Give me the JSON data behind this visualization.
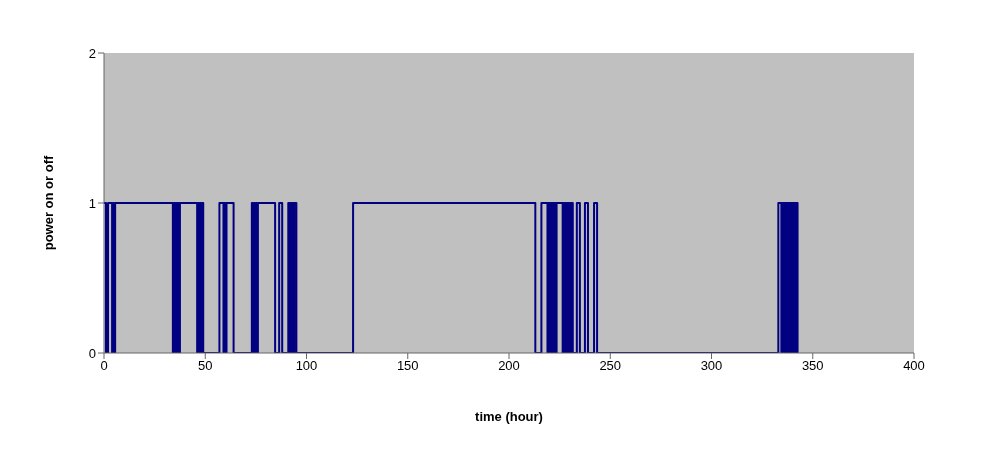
{
  "chart_data": {
    "type": "step",
    "xlabel": "time (hour)",
    "ylabel": "power on or off",
    "x": [
      0,
      1,
      2,
      4,
      4.5,
      5,
      5.5,
      34,
      34.5,
      35,
      35.5,
      36,
      36.5,
      37,
      37.5,
      46,
      46.5,
      47,
      47.5,
      48,
      48.5,
      49,
      57,
      59,
      59.5,
      60,
      60.5,
      64,
      73,
      73.5,
      74,
      74.5,
      75,
      75.5,
      76,
      84.5,
      86.5,
      88,
      91,
      91.5,
      92,
      92.5,
      93,
      93.5,
      94,
      95,
      123,
      213,
      216,
      219,
      219.5,
      220,
      220.5,
      221,
      221.5,
      222,
      222.5,
      223,
      223.5,
      226.5,
      227,
      227.5,
      228,
      228.5,
      229,
      229.5,
      230,
      230.5,
      231,
      231.5,
      233.5,
      235,
      237.5,
      239,
      242,
      243.5,
      333,
      334.5,
      335,
      335.5,
      336,
      336.5,
      337,
      337.5,
      338,
      338.5,
      339,
      339.5,
      340,
      340.5,
      341,
      341.5,
      342,
      342.5
    ],
    "series": [
      {
        "color": "#000080",
        "values": [
          1,
          0,
          1,
          0,
          1,
          0,
          1,
          0,
          1,
          0,
          1,
          0,
          1,
          0,
          1,
          0,
          1,
          0,
          1,
          0,
          1,
          0,
          1,
          0,
          1,
          0,
          1,
          0,
          1,
          0,
          1,
          0,
          1,
          0,
          1,
          0,
          1,
          0,
          1,
          0,
          1,
          0,
          1,
          0,
          1,
          0,
          1,
          0,
          1,
          0,
          1,
          0,
          1,
          0,
          1,
          0,
          1,
          0,
          1,
          0,
          1,
          0,
          1,
          0,
          1,
          0,
          1,
          0,
          1,
          0,
          1,
          0,
          1,
          0,
          1,
          0,
          1,
          0,
          1,
          0,
          1,
          0,
          1,
          0,
          1,
          0,
          1,
          0,
          1,
          0,
          1,
          0,
          1,
          0
        ]
      }
    ],
    "xlim": [
      0,
      400
    ],
    "xticks": [
      0,
      50,
      100,
      150,
      200,
      250,
      300,
      350,
      400
    ],
    "ylim": [
      0,
      2
    ],
    "yticks": [
      0,
      1,
      2
    ],
    "grid": false,
    "legend": false,
    "marker": "none",
    "line_style": "solid"
  }
}
